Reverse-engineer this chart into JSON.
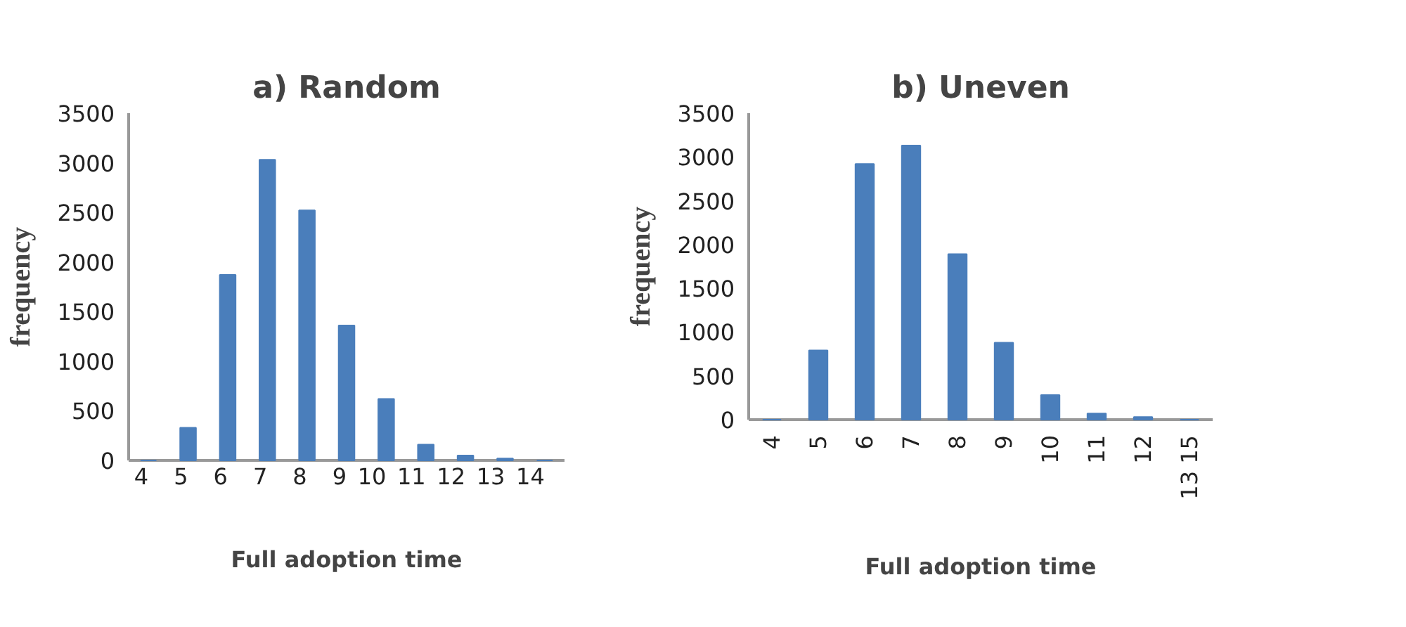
{
  "chart_data": [
    {
      "type": "bar",
      "title": "a) Random",
      "xlabel": "Full adoption time",
      "ylabel": "frequency",
      "categories": [
        "4",
        "5",
        "6",
        "7",
        "8",
        "9",
        "10",
        "11",
        "12",
        "13",
        "14"
      ],
      "values": [
        0,
        330,
        1870,
        3030,
        2520,
        1360,
        620,
        160,
        50,
        20,
        0
      ],
      "color": "#4a7ebb",
      "ylim": [
        0,
        3500
      ],
      "yticks": [
        0,
        500,
        1000,
        1500,
        2000,
        2500,
        3000,
        3500
      ]
    },
    {
      "type": "bar",
      "title": "b) Uneven",
      "xlabel": "Full adoption time",
      "ylabel": "frequency",
      "categories": [
        "4",
        "5",
        "6",
        "7",
        "8",
        "9",
        "10",
        "11",
        "12",
        "13 15"
      ],
      "values": [
        0,
        790,
        2920,
        3130,
        1890,
        880,
        280,
        70,
        30,
        0
      ],
      "color": "#4a7ebb",
      "ylim": [
        0,
        3500
      ],
      "yticks": [
        0,
        500,
        1000,
        1500,
        2000,
        2500,
        3000,
        3500
      ]
    }
  ]
}
